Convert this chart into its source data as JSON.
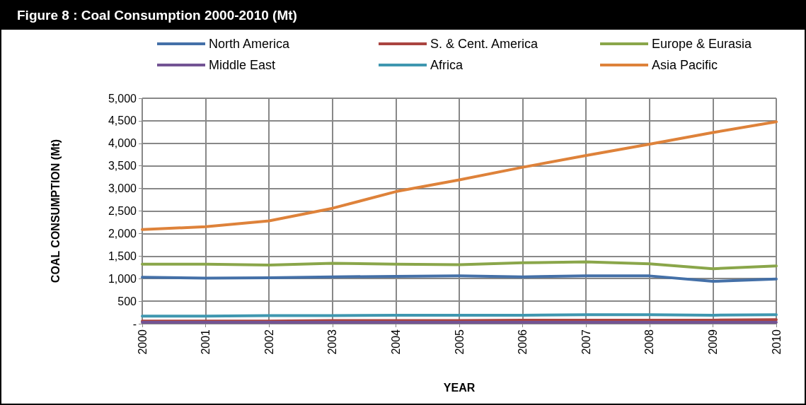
{
  "chart_data": {
    "type": "line",
    "title": "Figure 8 : Coal Consumption 2000-2010 (Mt)",
    "xlabel": "YEAR",
    "ylabel": "COAL CONSUMPTION (Mt)",
    "categories": [
      "2000",
      "2001",
      "2002",
      "2003",
      "2004",
      "2005",
      "2006",
      "2007",
      "2008",
      "2009",
      "2010"
    ],
    "series": [
      {
        "name": "North America",
        "color": "#4470a8",
        "values": [
          1030,
          1010,
          1020,
          1040,
          1050,
          1060,
          1040,
          1060,
          1060,
          940,
          990
        ]
      },
      {
        "name": "S. & Cent. America",
        "color": "#aa4440",
        "values": [
          60,
          60,
          60,
          70,
          70,
          70,
          80,
          80,
          80,
          80,
          90
        ]
      },
      {
        "name": "Europe & Eurasia",
        "color": "#8aa64a",
        "values": [
          1320,
          1320,
          1300,
          1340,
          1320,
          1310,
          1350,
          1370,
          1330,
          1220,
          1280
        ]
      },
      {
        "name": "Middle East",
        "color": "#735494",
        "values": [
          30,
          30,
          30,
          30,
          30,
          30,
          30,
          30,
          30,
          30,
          30
        ]
      },
      {
        "name": "Africa",
        "color": "#3f97b0",
        "values": [
          170,
          170,
          180,
          180,
          190,
          190,
          190,
          200,
          200,
          190,
          200
        ]
      },
      {
        "name": "Asia Pacific",
        "color": "#de823a",
        "values": [
          2090,
          2150,
          2280,
          2560,
          2930,
          3190,
          3470,
          3730,
          3980,
          4240,
          4480
        ]
      }
    ],
    "ylim": [
      0,
      5000
    ],
    "yticks": [
      {
        "value": 0,
        "label": "-"
      },
      {
        "value": 500,
        "label": "500"
      },
      {
        "value": 1000,
        "label": "1,000"
      },
      {
        "value": 1500,
        "label": "1,500"
      },
      {
        "value": 2000,
        "label": "2,000"
      },
      {
        "value": 2500,
        "label": "2,500"
      },
      {
        "value": 3000,
        "label": "3,000"
      },
      {
        "value": 3500,
        "label": "3,500"
      },
      {
        "value": 4000,
        "label": "4,000"
      },
      {
        "value": 4500,
        "label": "4,500"
      },
      {
        "value": 5000,
        "label": "5,000"
      }
    ],
    "grid": true,
    "legend": "top",
    "marker": "none",
    "line_style": "solid"
  }
}
